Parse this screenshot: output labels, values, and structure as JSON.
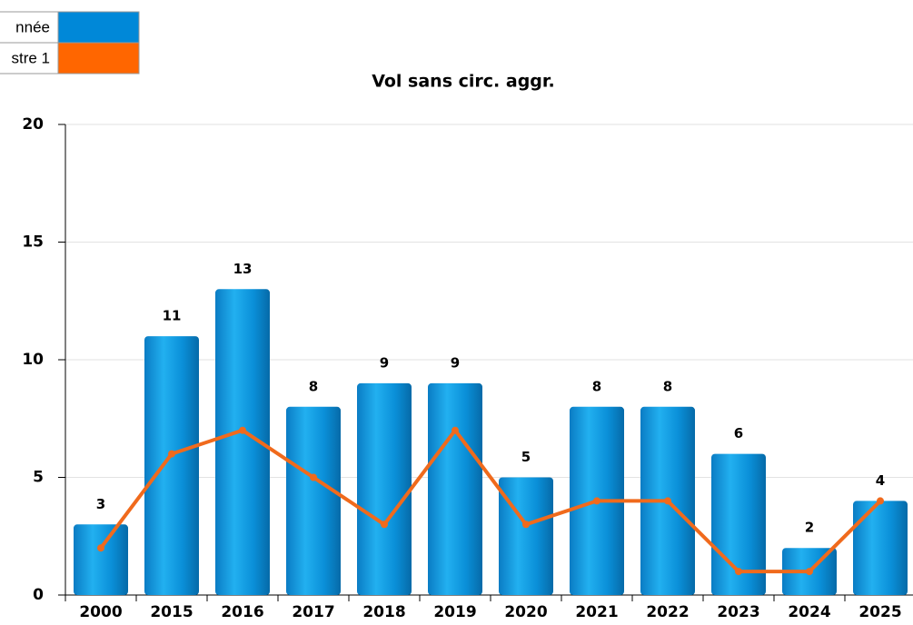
{
  "chart_data": {
    "type": "bar",
    "title": "Vol sans circ. aggr.",
    "categories": [
      "2000",
      "2015",
      "2016",
      "2017",
      "2018",
      "2019",
      "2020",
      "2021",
      "2022",
      "2023",
      "2024",
      "2025"
    ],
    "series": [
      {
        "name": "nnée",
        "type": "bar",
        "color": "#0a8fd8",
        "values": [
          3,
          11,
          13,
          8,
          9,
          9,
          5,
          8,
          8,
          6,
          2,
          4
        ]
      },
      {
        "name": "stre 1",
        "type": "line",
        "color": "#f06a1c",
        "values": [
          2,
          6,
          7,
          5,
          3,
          7,
          3,
          4,
          4,
          1,
          1,
          4
        ]
      }
    ],
    "ylim": [
      0,
      20
    ],
    "yticks": [
      0,
      5,
      10,
      15,
      20
    ],
    "grid": true,
    "legend": "top-left"
  }
}
